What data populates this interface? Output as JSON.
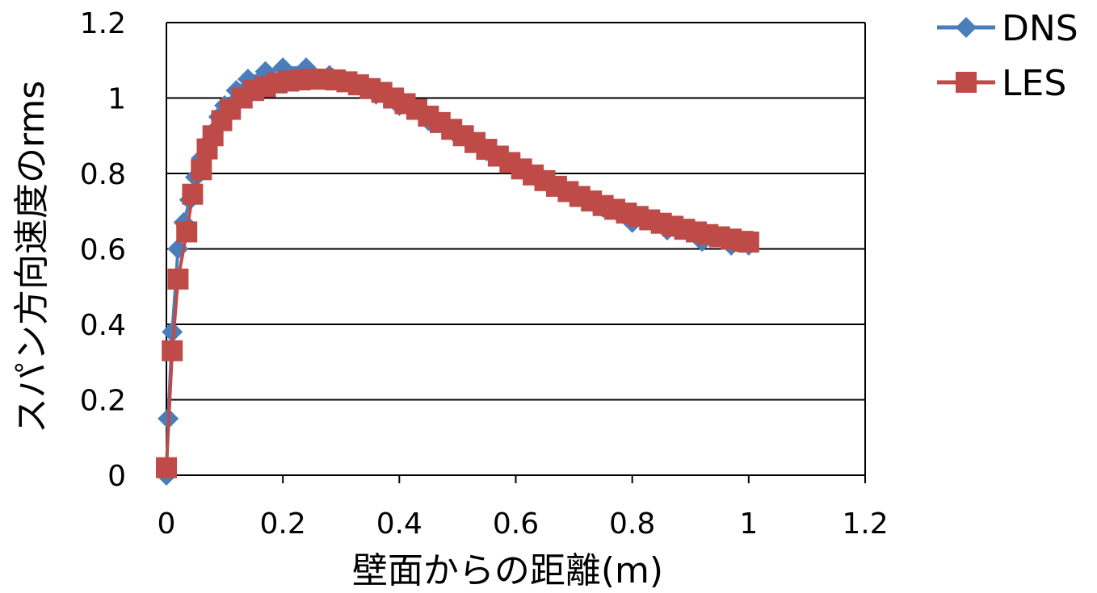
{
  "chart_data": {
    "type": "line",
    "title": "",
    "xlabel": "壁面からの距離(m)",
    "ylabel": "スパン方向速度のrms",
    "xlim": [
      0,
      1.2
    ],
    "ylim": [
      0,
      1.2
    ],
    "xticks": [
      "0",
      "0.2",
      "0.4",
      "0.6",
      "0.8",
      "1",
      "1.2"
    ],
    "yticks": [
      "0",
      "0.2",
      "0.4",
      "0.6",
      "0.8",
      "1",
      "1.2"
    ],
    "grid": "horizontal",
    "legend": "top-right",
    "series": [
      {
        "name": "DNS",
        "color": "#4a7ebb",
        "marker": "diamond",
        "x": [
          0,
          0.003,
          0.01,
          0.02,
          0.03,
          0.04,
          0.05,
          0.06,
          0.07,
          0.08,
          0.09,
          0.1,
          0.12,
          0.14,
          0.17,
          0.2,
          0.24,
          0.28,
          0.32,
          0.36,
          0.4,
          0.45,
          0.5,
          0.55,
          0.6,
          0.65,
          0.7,
          0.75,
          0.8,
          0.86,
          0.92,
          0.97,
          1.0
        ],
        "y": [
          0,
          0.15,
          0.38,
          0.6,
          0.67,
          0.73,
          0.79,
          0.84,
          0.88,
          0.91,
          0.95,
          0.98,
          1.02,
          1.05,
          1.07,
          1.08,
          1.08,
          1.06,
          1.04,
          1.01,
          0.98,
          0.94,
          0.9,
          0.86,
          0.82,
          0.78,
          0.74,
          0.71,
          0.67,
          0.65,
          0.62,
          0.61,
          0.61
        ]
      },
      {
        "name": "LES",
        "color": "#be4b48",
        "marker": "square",
        "x": [
          0,
          0.01,
          0.02,
          0.035,
          0.045,
          0.06,
          0.07,
          0.08,
          0.095,
          0.11,
          0.13,
          0.15,
          0.17,
          0.19,
          0.21,
          0.23,
          0.25,
          0.27,
          0.29,
          0.31,
          0.33,
          0.35,
          0.37,
          0.39,
          0.41,
          0.43,
          0.45,
          0.47,
          0.49,
          0.51,
          0.53,
          0.55,
          0.57,
          0.59,
          0.61,
          0.63,
          0.65,
          0.67,
          0.69,
          0.71,
          0.73,
          0.75,
          0.77,
          0.79,
          0.81,
          0.83,
          0.85,
          0.87,
          0.89,
          0.91,
          0.93,
          0.95,
          0.97,
          0.99,
          1.0
        ],
        "y": [
          0.02,
          0.33,
          0.52,
          0.645,
          0.745,
          0.81,
          0.865,
          0.9,
          0.94,
          0.97,
          1.0,
          1.02,
          1.03,
          1.04,
          1.045,
          1.048,
          1.05,
          1.05,
          1.048,
          1.043,
          1.035,
          1.025,
          1.015,
          1.0,
          0.985,
          0.97,
          0.952,
          0.935,
          0.917,
          0.9,
          0.882,
          0.864,
          0.846,
          0.829,
          0.812,
          0.796,
          0.781,
          0.766,
          0.752,
          0.739,
          0.727,
          0.715,
          0.705,
          0.695,
          0.686,
          0.677,
          0.668,
          0.66,
          0.652,
          0.645,
          0.638,
          0.632,
          0.626,
          0.62,
          0.618
        ]
      }
    ]
  }
}
